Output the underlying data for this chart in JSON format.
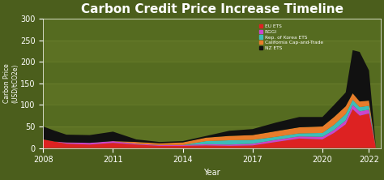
{
  "title": "Carbon Credit Price Increase Timeline",
  "xlabel": "Year",
  "ylabel": "Carbon Price\n(USD/tCO2e)",
  "background_color": "#4b5e1c",
  "plot_bg_color": "#556b20",
  "title_color": "#ffffff",
  "label_color": "#ffffff",
  "years": [
    2008,
    2008.5,
    2009,
    2010,
    2011,
    2012,
    2013,
    2014,
    2015,
    2016,
    2017,
    2018,
    2019,
    2020,
    2020.5,
    2021,
    2021.3,
    2021.6,
    2022,
    2022.3
  ],
  "series": {
    "EU ETS": {
      "color": "#dd2222",
      "values": [
        20,
        15,
        10,
        8,
        12,
        8,
        5,
        5,
        6,
        5,
        6,
        14,
        22,
        20,
        35,
        55,
        90,
        75,
        80,
        0
      ]
    },
    "RGGI": {
      "color": "#cc44cc",
      "values": [
        0,
        0,
        3,
        4,
        4,
        2,
        2,
        2,
        3,
        3,
        4,
        5,
        5,
        6,
        7,
        9,
        10,
        10,
        9,
        0
      ]
    },
    "Rep. of Korea ETS": {
      "color": "#3dbcb8",
      "values": [
        0,
        0,
        0,
        0,
        0,
        0,
        0,
        0,
        7,
        10,
        9,
        7,
        7,
        9,
        12,
        15,
        12,
        10,
        9,
        0
      ]
    },
    "California Cap-and-Trade": {
      "color": "#e87c2a",
      "values": [
        0,
        0,
        0,
        0,
        0,
        4,
        4,
        6,
        8,
        10,
        11,
        13,
        14,
        15,
        18,
        18,
        15,
        13,
        12,
        0
      ]
    },
    "NZ ETS": {
      "color": "#111111",
      "values": [
        30,
        25,
        18,
        18,
        22,
        6,
        3,
        3,
        4,
        12,
        14,
        20,
        24,
        22,
        28,
        32,
        100,
        115,
        70,
        0
      ]
    }
  },
  "ylim": [
    0,
    300
  ],
  "yticks": [
    0,
    50,
    100,
    150,
    200,
    250,
    300
  ],
  "xticks": [
    2008,
    2011,
    2014,
    2017,
    2020,
    2022
  ],
  "legend_entries": [
    {
      "label": "EU ETS",
      "color": "#dd2222"
    },
    {
      "label": "RGGI",
      "color": "#cc44cc"
    },
    {
      "label": "Rep. of Korea ETS",
      "color": "#3dbcb8"
    },
    {
      "label": "California Cap-and-Trade",
      "color": "#e87c2a"
    },
    {
      "label": "NZ ETS",
      "color": "#111111"
    }
  ]
}
